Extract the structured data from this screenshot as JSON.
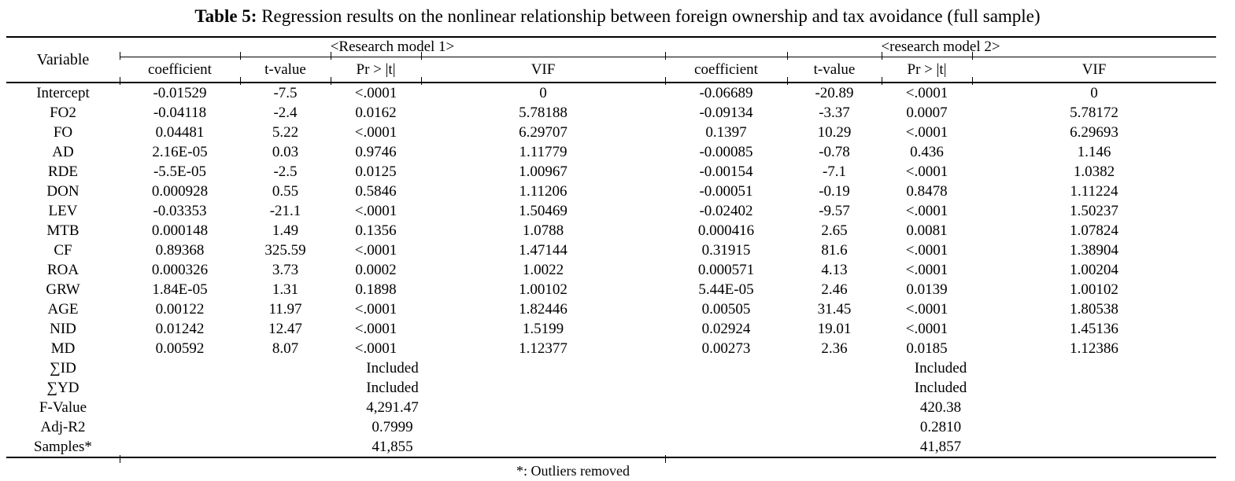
{
  "title": {
    "label": "Table 5:",
    "text": "Regression results on the nonlinear relationship between foreign ownership and tax avoidance (full sample)"
  },
  "table": {
    "variable_header": "Variable",
    "model1_header": "<Research model 1>",
    "model2_header": "<research model 2>",
    "sub_headers": [
      "coefficient",
      "t-value",
      "Pr > |t|",
      "VIF"
    ],
    "rows": [
      {
        "variable": "Intercept",
        "m1": [
          "-0.01529",
          "-7.5",
          "<.0001",
          "0"
        ],
        "m2": [
          "-0.06689",
          "-20.89",
          "<.0001",
          "0"
        ]
      },
      {
        "variable": "FO2",
        "m1": [
          "-0.04118",
          "-2.4",
          "0.0162",
          "5.78188"
        ],
        "m2": [
          "-0.09134",
          "-3.37",
          "0.0007",
          "5.78172"
        ]
      },
      {
        "variable": "FO",
        "m1": [
          "0.04481",
          "5.22",
          "<.0001",
          "6.29707"
        ],
        "m2": [
          "0.1397",
          "10.29",
          "<.0001",
          "6.29693"
        ]
      },
      {
        "variable": "AD",
        "m1": [
          "2.16E-05",
          "0.03",
          "0.9746",
          "1.11779"
        ],
        "m2": [
          "-0.00085",
          "-0.78",
          "0.436",
          "1.146"
        ]
      },
      {
        "variable": "RDE",
        "m1": [
          "-5.5E-05",
          "-2.5",
          "0.0125",
          "1.00967"
        ],
        "m2": [
          "-0.00154",
          "-7.1",
          "<.0001",
          "1.0382"
        ]
      },
      {
        "variable": "DON",
        "m1": [
          "0.000928",
          "0.55",
          "0.5846",
          "1.11206"
        ],
        "m2": [
          "-0.00051",
          "-0.19",
          "0.8478",
          "1.11224"
        ]
      },
      {
        "variable": "LEV",
        "m1": [
          "-0.03353",
          "-21.1",
          "<.0001",
          "1.50469"
        ],
        "m2": [
          "-0.02402",
          "-9.57",
          "<.0001",
          "1.50237"
        ]
      },
      {
        "variable": "MTB",
        "m1": [
          "0.000148",
          "1.49",
          "0.1356",
          "1.0788"
        ],
        "m2": [
          "0.000416",
          "2.65",
          "0.0081",
          "1.07824"
        ]
      },
      {
        "variable": "CF",
        "m1": [
          "0.89368",
          "325.59",
          "<.0001",
          "1.47144"
        ],
        "m2": [
          "0.31915",
          "81.6",
          "<.0001",
          "1.38904"
        ]
      },
      {
        "variable": "ROA",
        "m1": [
          "0.000326",
          "3.73",
          "0.0002",
          "1.0022"
        ],
        "m2": [
          "0.000571",
          "4.13",
          "<.0001",
          "1.00204"
        ]
      },
      {
        "variable": "GRW",
        "m1": [
          "1.84E-05",
          "1.31",
          "0.1898",
          "1.00102"
        ],
        "m2": [
          "5.44E-05",
          "2.46",
          "0.0139",
          "1.00102"
        ]
      },
      {
        "variable": "AGE",
        "m1": [
          "0.00122",
          "11.97",
          "<.0001",
          "1.82446"
        ],
        "m2": [
          "0.00505",
          "31.45",
          "<.0001",
          "1.80538"
        ]
      },
      {
        "variable": "NID",
        "m1": [
          "0.01242",
          "12.47",
          "<.0001",
          "1.5199"
        ],
        "m2": [
          "0.02924",
          "19.01",
          "<.0001",
          "1.45136"
        ]
      },
      {
        "variable": "MD",
        "m1": [
          "0.00592",
          "8.07",
          "<.0001",
          "1.12377"
        ],
        "m2": [
          "0.00273",
          "2.36",
          "0.0185",
          "1.12386"
        ]
      }
    ],
    "summary_rows": [
      {
        "variable": "∑ID",
        "m1": "Included",
        "m2": "Included"
      },
      {
        "variable": "∑YD",
        "m1": "Included",
        "m2": "Included"
      },
      {
        "variable": "F-Value",
        "m1": "4,291.47",
        "m2": "420.38"
      },
      {
        "variable": "Adj-R2",
        "m1": "0.7999",
        "m2": "0.2810"
      },
      {
        "variable": "Samples*",
        "m1": "41,855",
        "m2": "41,857"
      }
    ]
  },
  "footnote": "*: Outliers removed"
}
